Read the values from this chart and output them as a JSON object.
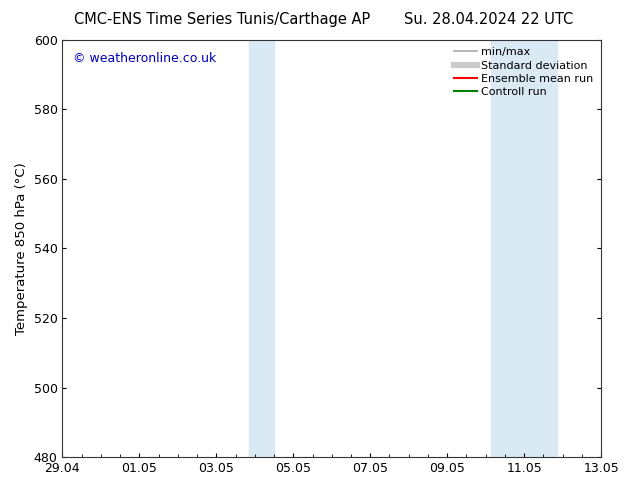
{
  "title_left": "CMC-ENS Time Series Tunis/Carthage AP",
  "title_right": "Su. 28.04.2024 22 UTC",
  "ylabel": "Temperature 850 hPa (°C)",
  "ylim": [
    480,
    600
  ],
  "yticks": [
    480,
    500,
    520,
    540,
    560,
    580,
    600
  ],
  "xtick_labels": [
    "29.04",
    "01.05",
    "03.05",
    "05.05",
    "07.05",
    "09.05",
    "11.05",
    "13.05"
  ],
  "xtick_positions": [
    0,
    2,
    4,
    6,
    8,
    10,
    12,
    14
  ],
  "xlim": [
    0,
    14
  ],
  "shaded_regions": [
    {
      "xmin": 4.85,
      "xmax": 5.5
    },
    {
      "xmin": 11.15,
      "xmax": 12.85
    }
  ],
  "shade_color": "#daeaf5",
  "background_color": "#ffffff",
  "watermark_text": "© weatheronline.co.uk",
  "watermark_color": "#0000bb",
  "legend_items": [
    {
      "label": "min/max",
      "color": "#aaaaaa",
      "lw": 1.2
    },
    {
      "label": "Standard deviation",
      "color": "#cccccc",
      "lw": 4.5
    },
    {
      "label": "Ensemble mean run",
      "color": "#ff0000",
      "lw": 1.5
    },
    {
      "label": "Controll run",
      "color": "#008000",
      "lw": 1.5
    }
  ],
  "title_fontsize": 10.5,
  "ylabel_fontsize": 9.5,
  "tick_fontsize": 9,
  "legend_fontsize": 8,
  "watermark_fontsize": 9
}
